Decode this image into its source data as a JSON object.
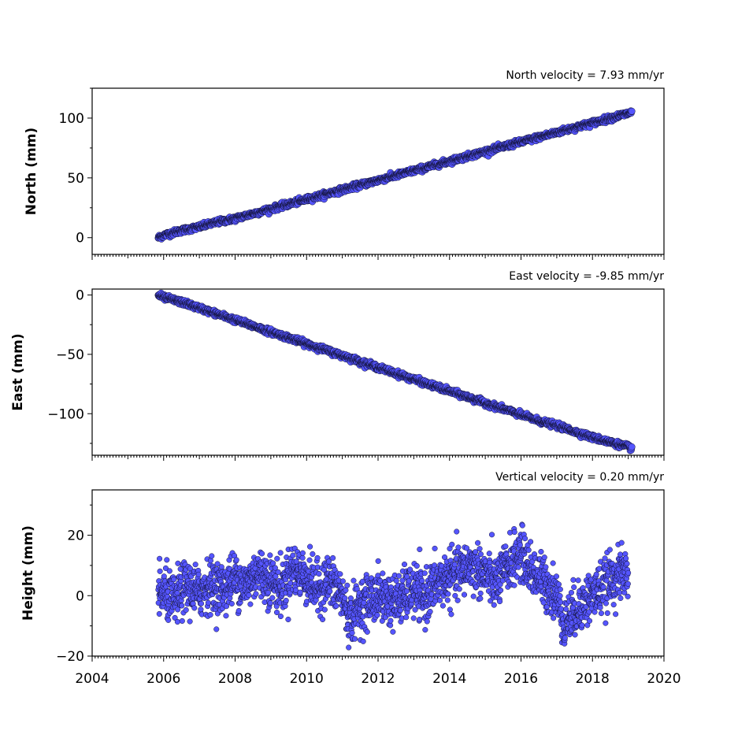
{
  "chart_data": [
    {
      "type": "scatter",
      "title": "North velocity = 7.93 mm/yr",
      "ylabel": "North (mm)",
      "xlim": [
        2004,
        2020
      ],
      "ylim": [
        -14,
        125
      ],
      "yticks": [
        0,
        50,
        100
      ],
      "xticks": [
        2004,
        2006,
        2008,
        2010,
        2012,
        2014,
        2016,
        2018,
        2020
      ],
      "show_x_tick_labels": false,
      "series": [
        {
          "x": [
            2005.85,
            2006.0,
            2006.5,
            2007.0,
            2007.5,
            2008.0,
            2008.5,
            2009.0,
            2009.5,
            2010.0,
            2010.5,
            2011.0,
            2011.5,
            2012.0,
            2012.5,
            2013.0,
            2013.5,
            2014.0,
            2014.5,
            2015.0,
            2015.5,
            2016.0,
            2016.5,
            2017.0,
            2017.5,
            2018.0,
            2018.5,
            2019.0,
            2019.1
          ],
          "y": [
            0,
            2,
            6,
            9,
            13,
            16,
            20,
            24,
            28,
            32,
            36,
            40,
            44,
            48,
            52,
            56,
            60,
            64,
            68,
            72,
            76,
            80,
            84,
            88,
            92,
            96,
            100,
            104,
            105
          ]
        }
      ]
    },
    {
      "type": "scatter",
      "title": "East velocity = -9.85 mm/yr",
      "ylabel": "East (mm)",
      "xlim": [
        2004,
        2020
      ],
      "ylim": [
        -135,
        5
      ],
      "yticks": [
        0,
        -50,
        -100
      ],
      "ytick_labels": [
        "0",
        "−50",
        "−100"
      ],
      "xticks": [
        2004,
        2006,
        2008,
        2010,
        2012,
        2014,
        2016,
        2018,
        2020
      ],
      "show_x_tick_labels": false,
      "series": [
        {
          "x": [
            2005.85,
            2006.0,
            2006.5,
            2007.0,
            2007.5,
            2008.0,
            2008.5,
            2009.0,
            2009.5,
            2010.0,
            2010.5,
            2011.0,
            2011.5,
            2012.0,
            2012.5,
            2013.0,
            2013.5,
            2014.0,
            2014.5,
            2015.0,
            2015.5,
            2016.0,
            2016.5,
            2017.0,
            2017.5,
            2018.0,
            2018.5,
            2019.0,
            2019.1
          ],
          "y": [
            0,
            -2,
            -6,
            -11,
            -16,
            -21,
            -26,
            -31,
            -36,
            -41,
            -46,
            -51,
            -56,
            -61,
            -66,
            -71,
            -76,
            -81,
            -86,
            -91,
            -96,
            -101,
            -106,
            -110,
            -115,
            -120,
            -124,
            -128,
            -129
          ]
        }
      ]
    },
    {
      "type": "scatter",
      "title": "Vertical velocity = 0.20 mm/yr",
      "ylabel": "Height (mm)",
      "xlim": [
        2004,
        2020
      ],
      "ylim": [
        -20,
        35
      ],
      "yticks": [
        -20,
        0,
        20
      ],
      "ytick_labels": [
        "−20",
        "0",
        "20"
      ],
      "xticks": [
        2004,
        2006,
        2008,
        2010,
        2012,
        2014,
        2016,
        2018,
        2020
      ],
      "xtick_labels": [
        "2004",
        "2006",
        "2008",
        "2010",
        "2012",
        "2014",
        "2016",
        "2018",
        "2020"
      ],
      "show_x_tick_labels": true,
      "series": [
        {
          "x": [
            2005.85,
            2006.0,
            2006.3,
            2006.6,
            2007.0,
            2007.3,
            2007.6,
            2008.0,
            2008.3,
            2008.6,
            2009.0,
            2009.3,
            2009.6,
            2010.0,
            2010.3,
            2010.6,
            2011.0,
            2011.2,
            2011.5,
            2012.0,
            2012.5,
            2013.0,
            2013.3,
            2013.6,
            2014.0,
            2014.3,
            2014.6,
            2015.0,
            2015.3,
            2015.7,
            2016.0,
            2016.3,
            2016.6,
            2017.0,
            2017.2,
            2017.5,
            2018.0,
            2018.3,
            2018.6,
            2019.0
          ],
          "y": [
            0,
            1,
            -2,
            3,
            1,
            4,
            2,
            6,
            3,
            8,
            5,
            2,
            9,
            6,
            2,
            5,
            0,
            -8,
            -3,
            0,
            -2,
            2,
            -1,
            4,
            6,
            8,
            10,
            7,
            4,
            11,
            14,
            8,
            5,
            0,
            -10,
            -5,
            0,
            3,
            6,
            8
          ]
        }
      ]
    }
  ],
  "colors": {
    "marker_fill": "#5555ff",
    "marker_edge": "#111133"
  }
}
